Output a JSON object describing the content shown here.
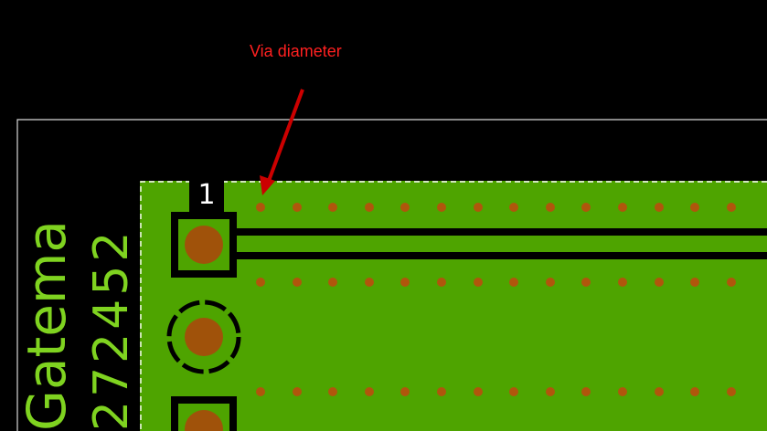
{
  "annotation": {
    "label": "Via diameter"
  },
  "footprint": {
    "pin1_label": "1",
    "brand_text": "Gatema",
    "part_number": "272452"
  },
  "colors": {
    "background": "#000000",
    "copper_fill": "#4ea400",
    "pad_copper": "#a0520a",
    "via": "#b0560c",
    "silkscreen": "#7fd320",
    "annotation": "#ff2020",
    "board_outline": "#d8d8d8"
  }
}
